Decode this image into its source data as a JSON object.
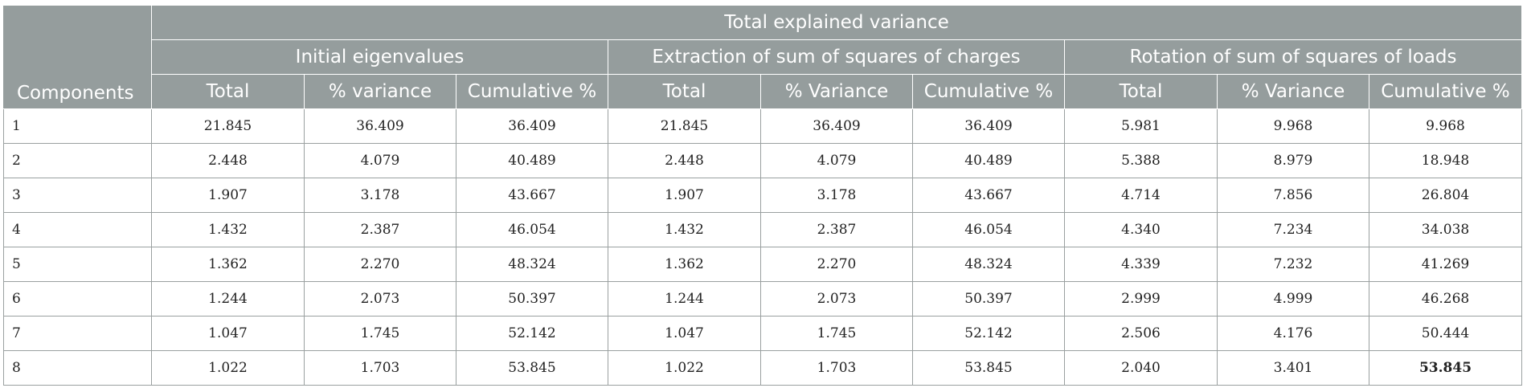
{
  "table": {
    "title": "Total explained variance",
    "components_label": "Components",
    "groups": [
      "Initial eigenvalues",
      "Extraction of sum of squares of charges",
      "Rotation of sum of squares of loads"
    ],
    "subheaders": [
      "Total",
      "% variance",
      "Cumulative %",
      "Total",
      "% Variance",
      "Cumulative %",
      "Total",
      "% Variance",
      "Cumulative %"
    ],
    "rows": [
      [
        "1",
        "21.845",
        "36.409",
        "36.409",
        "21.845",
        "36.409",
        "36.409",
        "5.981",
        "9.968",
        "9.968"
      ],
      [
        "2",
        "2.448",
        "4.079",
        "40.489",
        "2.448",
        "4.079",
        "40.489",
        "5.388",
        "8.979",
        "18.948"
      ],
      [
        "3",
        "1.907",
        "3.178",
        "43.667",
        "1.907",
        "3.178",
        "43.667",
        "4.714",
        "7.856",
        "26.804"
      ],
      [
        "4",
        "1.432",
        "2.387",
        "46.054",
        "1.432",
        "2.387",
        "46.054",
        "4.340",
        "7.234",
        "34.038"
      ],
      [
        "5",
        "1.362",
        "2.270",
        "48.324",
        "1.362",
        "2.270",
        "48.324",
        "4.339",
        "7.232",
        "41.269"
      ],
      [
        "6",
        "1.244",
        "2.073",
        "50.397",
        "1.244",
        "2.073",
        "50.397",
        "2.999",
        "4.999",
        "46.268"
      ],
      [
        "7",
        "1.047",
        "1.745",
        "52.142",
        "1.047",
        "1.745",
        "52.142",
        "2.506",
        "4.176",
        "50.444"
      ],
      [
        "8",
        "1.022",
        "1.703",
        "53.845",
        "1.022",
        "1.703",
        "53.845",
        "2.040",
        "3.401",
        "53.845"
      ]
    ],
    "header_color": "#959d9d"
  }
}
